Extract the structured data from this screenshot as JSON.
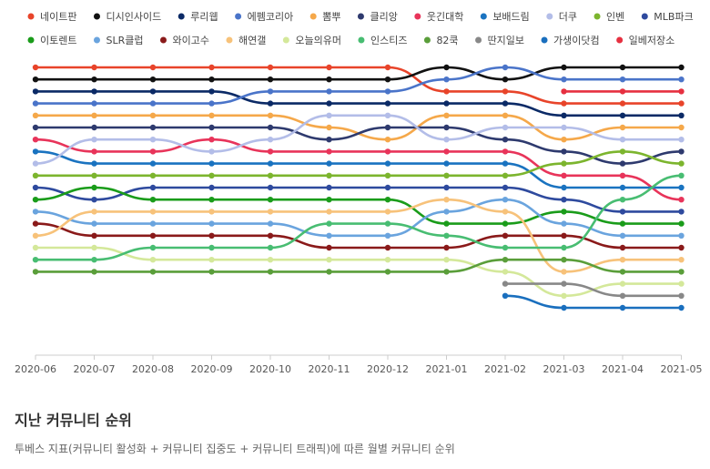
{
  "chart_data": {
    "type": "line",
    "title": "",
    "xlabel": "",
    "ylabel": "",
    "categories": [
      "2020-06",
      "2020-07",
      "2020-08",
      "2020-09",
      "2020-10",
      "2020-11",
      "2020-12",
      "2021-01",
      "2021-02",
      "2021-03",
      "2021-04",
      "2021-05"
    ],
    "grid": false,
    "legend_position": "top",
    "series": [
      {
        "name": "네이트판",
        "color": "#e8442a",
        "ranks": [
          1,
          1,
          1,
          1,
          1,
          1,
          1,
          3,
          3,
          4,
          4,
          4
        ]
      },
      {
        "name": "디시인사이드",
        "color": "#111111",
        "ranks": [
          2,
          2,
          2,
          2,
          2,
          2,
          2,
          1,
          2,
          1,
          1,
          1
        ]
      },
      {
        "name": "루리웹",
        "color": "#0b2a66",
        "ranks": [
          3,
          3,
          3,
          3,
          4,
          4,
          4,
          4,
          4,
          5,
          5,
          5
        ]
      },
      {
        "name": "에펨코리아",
        "color": "#4a74c9",
        "ranks": [
          4,
          4,
          4,
          4,
          3,
          3,
          3,
          2,
          1,
          2,
          2,
          2
        ]
      },
      {
        "name": "뽐뿌",
        "color": "#f5a84a",
        "ranks": [
          5,
          5,
          5,
          5,
          5,
          6,
          7,
          5,
          5,
          7,
          6,
          6
        ]
      },
      {
        "name": "클리앙",
        "color": "#2e3a6e",
        "ranks": [
          6,
          6,
          6,
          6,
          6,
          7,
          6,
          6,
          7,
          8,
          9,
          8
        ]
      },
      {
        "name": "웃긴대학",
        "color": "#e8345a",
        "ranks": [
          7,
          8,
          8,
          7,
          8,
          8,
          8,
          8,
          8,
          10,
          10,
          12
        ]
      },
      {
        "name": "보배드림",
        "color": "#1a73c0",
        "ranks": [
          8,
          9,
          9,
          9,
          9,
          9,
          9,
          9,
          9,
          11,
          11,
          11
        ]
      },
      {
        "name": "더쿠",
        "color": "#b3bde8",
        "ranks": [
          9,
          7,
          7,
          8,
          7,
          5,
          5,
          7,
          6,
          6,
          7,
          7
        ]
      },
      {
        "name": "인벤",
        "color": "#7cb52e",
        "ranks": [
          10,
          10,
          10,
          10,
          10,
          10,
          10,
          10,
          10,
          9,
          8,
          9
        ]
      },
      {
        "name": "MLB파크",
        "color": "#2e4a9e",
        "ranks": [
          11,
          12,
          11,
          11,
          11,
          11,
          11,
          11,
          11,
          12,
          13,
          13
        ]
      },
      {
        "name": "이토렌트",
        "color": "#1a9c1a",
        "ranks": [
          12,
          11,
          12,
          12,
          12,
          12,
          12,
          14,
          14,
          13,
          14,
          14
        ]
      },
      {
        "name": "SLR클럽",
        "color": "#6aa4de",
        "ranks": [
          13,
          14,
          14,
          14,
          14,
          15,
          15,
          13,
          12,
          14,
          15,
          15
        ]
      },
      {
        "name": "와이고수",
        "color": "#8a1a1a",
        "ranks": [
          14,
          15,
          15,
          15,
          15,
          16,
          16,
          16,
          15,
          15,
          16,
          16
        ]
      },
      {
        "name": "해연갤",
        "color": "#f7c27a",
        "ranks": [
          15,
          13,
          13,
          13,
          13,
          13,
          13,
          12,
          13,
          18,
          17,
          17
        ]
      },
      {
        "name": "오늘의유머",
        "color": "#d4e89a",
        "ranks": [
          16,
          16,
          17,
          17,
          17,
          17,
          17,
          17,
          18,
          20,
          19,
          19
        ]
      },
      {
        "name": "인스티즈",
        "color": "#48bd72",
        "ranks": [
          17,
          17,
          16,
          16,
          16,
          14,
          14,
          15,
          16,
          16,
          12,
          10
        ]
      },
      {
        "name": "82쿡",
        "color": "#5a9e3a",
        "ranks": [
          18,
          18,
          18,
          18,
          18,
          18,
          18,
          18,
          17,
          17,
          18,
          18
        ]
      },
      {
        "name": "딴지일보",
        "color": "#888888",
        "ranks": [
          null,
          null,
          null,
          null,
          null,
          null,
          null,
          null,
          19,
          19,
          20,
          20
        ]
      },
      {
        "name": "가생이닷컴",
        "color": "#1a6fbe",
        "ranks": [
          null,
          null,
          null,
          null,
          null,
          null,
          null,
          null,
          20,
          21,
          21,
          21
        ]
      },
      {
        "name": "일베저장소",
        "color": "#e63040",
        "ranks": [
          null,
          null,
          null,
          null,
          null,
          null,
          null,
          null,
          null,
          3,
          3,
          3
        ]
      }
    ]
  },
  "caption": {
    "title": "지난 커뮤니티 순위",
    "subtitle": "투베스 지표(커뮤니티 활성화 + 커뮤니티 집중도 + 커뮤니티 트래픽)에 따른 월별 커뮤니티 순위"
  }
}
